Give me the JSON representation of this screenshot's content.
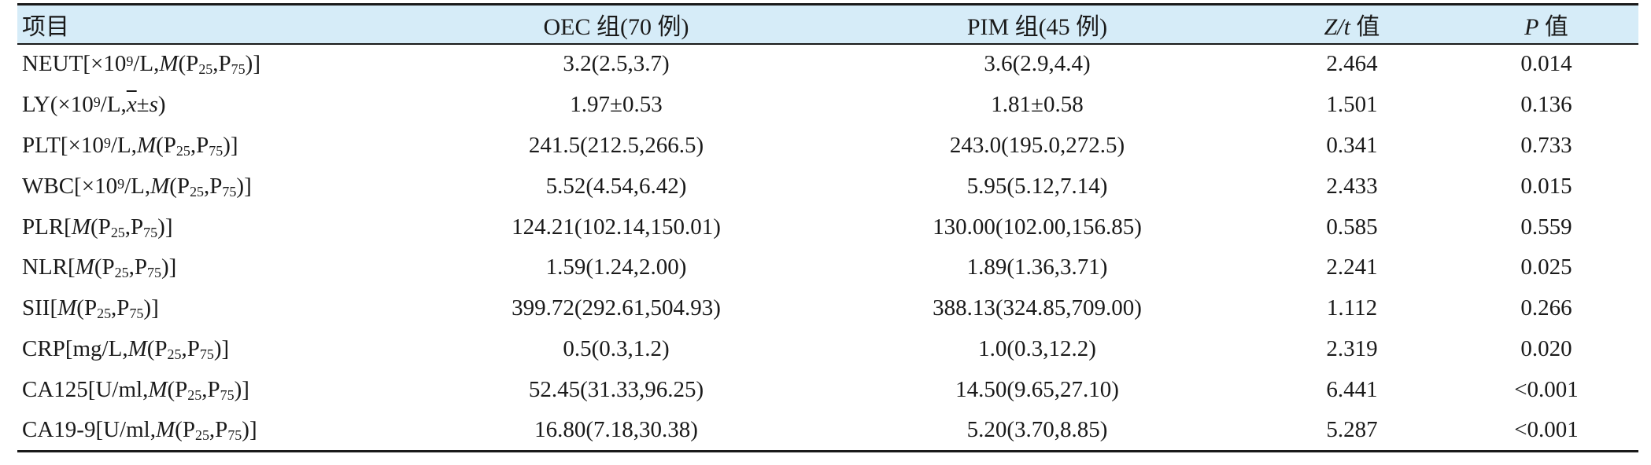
{
  "table": {
    "headers": {
      "item": "项目",
      "oec": "OEC 组(70 例)",
      "pim": "PIM 组(45 例)",
      "stat_sym": "Z/t",
      "stat_suffix": " 值",
      "p_sym": "P",
      "p_suffix": " 值"
    },
    "rows": [
      {
        "label_pre": "NEUT[×10",
        "label_exp": "9",
        "label_unit": "/L,",
        "stat_form": "M(P25,P75)",
        "label_post": "]",
        "oec": "3.2(2.5,3.7)",
        "pim": "3.6(2.9,4.4)",
        "stat": "2.464",
        "p": "0.014"
      },
      {
        "label_pre": "LY(×10",
        "label_exp": "9",
        "label_unit": "/L,",
        "stat_form": "x̄±s",
        "label_post": ")",
        "oec": "1.97±0.53",
        "pim": "1.81±0.58",
        "stat": "1.501",
        "p": "0.136"
      },
      {
        "label_pre": "PLT[×10",
        "label_exp": "9",
        "label_unit": "/L,",
        "stat_form": "M(P25,P75)",
        "label_post": "]",
        "oec": "241.5(212.5,266.5)",
        "pim": "243.0(195.0,272.5)",
        "stat": "0.341",
        "p": "0.733"
      },
      {
        "label_pre": "WBC[×10",
        "label_exp": "9",
        "label_unit": "/L,",
        "stat_form": "M(P25,P75)",
        "label_post": "]",
        "oec": "5.52(4.54,6.42)",
        "pim": "5.95(5.12,7.14)",
        "stat": "2.433",
        "p": "0.015"
      },
      {
        "label_pre": "PLR[",
        "label_exp": "",
        "label_unit": "",
        "stat_form": "M(P25,P75)",
        "label_post": "]",
        "oec": "124.21(102.14,150.01)",
        "pim": "130.00(102.00,156.85)",
        "stat": "0.585",
        "p": "0.559"
      },
      {
        "label_pre": "NLR[",
        "label_exp": "",
        "label_unit": "",
        "stat_form": "M(P25,P75)",
        "label_post": "]",
        "oec": "1.59(1.24,2.00)",
        "pim": "1.89(1.36,3.71)",
        "stat": "2.241",
        "p": "0.025"
      },
      {
        "label_pre": "SII[",
        "label_exp": "",
        "label_unit": "",
        "stat_form": "M(P25,P75)",
        "label_post": "]",
        "oec": "399.72(292.61,504.93)",
        "pim": "388.13(324.85,709.00)",
        "stat": "1.112",
        "p": "0.266"
      },
      {
        "label_pre": "CRP[",
        "label_exp": "",
        "label_unit": "mg/L,",
        "stat_form": "M(P25,P75)",
        "label_post": "]",
        "oec": "0.5(0.3,1.2)",
        "pim": "1.0(0.3,12.2)",
        "stat": "2.319",
        "p": "0.020"
      },
      {
        "label_pre": "CA125[",
        "label_exp": "",
        "label_unit": "U/ml,",
        "stat_form": "M(P25,P75)",
        "label_post": "]",
        "oec": "52.45(31.33,96.25)",
        "pim": "14.50(9.65,27.10)",
        "stat": "6.441",
        "p": "<0.001"
      },
      {
        "label_pre": "CA19-9[",
        "label_exp": "",
        "label_unit": "U/ml,",
        "stat_form": "M(P25,P75)",
        "label_post": "]",
        "oec": "16.80(7.18,30.38)",
        "pim": "5.20(3.70,8.85)",
        "stat": "5.287",
        "p": "<0.001"
      }
    ]
  }
}
